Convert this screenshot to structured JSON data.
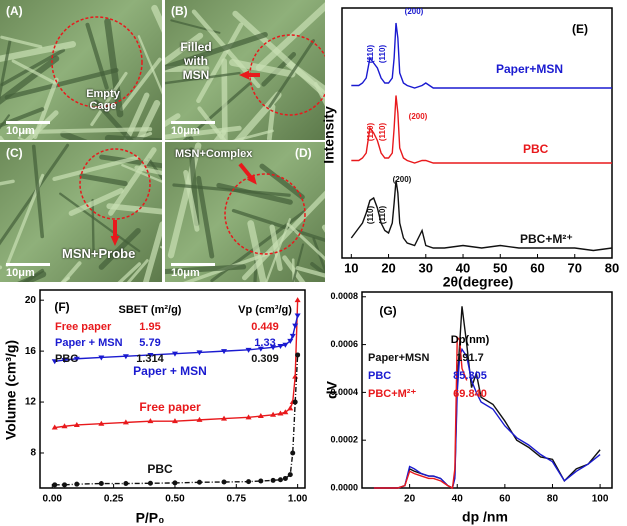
{
  "sem_panels": [
    {
      "label": "(A)",
      "caption": "Empty Cage",
      "scale": "10μm"
    },
    {
      "label": "(B)",
      "caption": "Filled with MSN",
      "scale": "10μm"
    },
    {
      "label": "(C)",
      "caption": "MSN+Probe",
      "scale": "10μm"
    },
    {
      "label": "(D)",
      "caption": "MSN+Complex",
      "scale": "10μm"
    }
  ],
  "chart_data": [
    {
      "type": "line",
      "panel": "(E)",
      "xlabel": "2θ(degree)",
      "ylabel": "Intensity",
      "x": [
        10,
        12,
        13,
        14,
        15,
        16,
        17,
        18,
        19,
        20,
        21,
        21.5,
        22,
        22.5,
        23,
        24,
        25,
        27,
        29,
        30,
        32,
        35,
        40,
        45,
        50,
        55,
        60,
        65,
        70,
        75,
        80
      ],
      "xlim": [
        7.5,
        80
      ],
      "xticks": [
        10,
        20,
        30,
        40,
        50,
        60,
        70,
        80
      ],
      "ylim": [
        0,
        100
      ],
      "series": [
        {
          "name": "Paper+MSN",
          "color": "#1a1ad0",
          "values": [
            69,
            69,
            70,
            72,
            80,
            78,
            76,
            72,
            70,
            70,
            72,
            80,
            94,
            88,
            74,
            70,
            69,
            68,
            69,
            70,
            68,
            68,
            68,
            68,
            68,
            68,
            68,
            68,
            68,
            68,
            68
          ]
        },
        {
          "name": "PBC",
          "color": "#e8191c",
          "values": [
            39,
            39,
            40,
            42,
            52,
            50,
            47,
            42,
            40,
            40,
            42,
            52,
            65,
            58,
            44,
            40,
            39,
            38,
            39,
            39,
            38,
            38,
            38,
            38,
            38,
            38,
            38,
            38,
            38,
            38,
            38
          ]
        },
        {
          "name": "PBC+M²⁺",
          "color": "#111111",
          "values": [
            8,
            12,
            14,
            18,
            23,
            24,
            20,
            14,
            11,
            10,
            14,
            22,
            31,
            26,
            14,
            8,
            6,
            5,
            11,
            5,
            4,
            4,
            5,
            4,
            5,
            4,
            4,
            4,
            4,
            3,
            4
          ]
        }
      ],
      "annotations": [
        {
          "text": "(110)",
          "color": "#1a1ad0"
        },
        {
          "text": "(110)",
          "color": "#1a1ad0"
        },
        {
          "text": "(200)",
          "color": "#1a1ad0"
        },
        {
          "text": "(110)",
          "color": "#e8191c"
        },
        {
          "text": "(110)",
          "color": "#e8191c"
        },
        {
          "text": "(200)",
          "color": "#e8191c"
        },
        {
          "text": "(110)",
          "color": "#111111"
        },
        {
          "text": "(110)",
          "color": "#111111"
        },
        {
          "text": "(200)",
          "color": "#111111"
        }
      ]
    },
    {
      "type": "line",
      "panel": "(F)",
      "xlabel": "P/P₀",
      "ylabel": "Volume (cm³/g)",
      "x": [
        0.01,
        0.05,
        0.1,
        0.2,
        0.3,
        0.4,
        0.5,
        0.6,
        0.7,
        0.8,
        0.85,
        0.9,
        0.93,
        0.95,
        0.97,
        0.98,
        0.99,
        1.0
      ],
      "xlim": [
        -0.05,
        1.03
      ],
      "ylim": [
        5.25,
        20.8
      ],
      "xticks": [
        {
          "value": 0,
          "label": "0.00"
        },
        {
          "value": 0.25,
          "label": "0.25"
        },
        {
          "value": 0.5,
          "label": "0.50"
        },
        {
          "value": 0.75,
          "label": "0.75"
        },
        {
          "value": 1,
          "label": "1.00"
        }
      ],
      "yticks": [
        8,
        12,
        16,
        20
      ],
      "series": [
        {
          "name": "Free paper",
          "color": "#e8191c",
          "marker": "triangle",
          "values": [
            10.0,
            10.1,
            10.2,
            10.3,
            10.4,
            10.5,
            10.5,
            10.6,
            10.7,
            10.8,
            10.9,
            11.0,
            11.1,
            11.2,
            11.5,
            12,
            14,
            20
          ]
        },
        {
          "name": "Paper + MSN",
          "color": "#1a1ad0",
          "marker": "triangle-down",
          "values": [
            15.2,
            15.3,
            15.4,
            15.5,
            15.6,
            15.7,
            15.8,
            15.9,
            16.0,
            16.1,
            16.2,
            16.3,
            16.4,
            16.5,
            16.8,
            17.2,
            18,
            18.8
          ]
        },
        {
          "name": "PBC",
          "color": "#111111",
          "marker": "circle",
          "dash": true,
          "values": [
            5.5,
            5.5,
            5.55,
            5.6,
            5.6,
            5.62,
            5.65,
            5.7,
            5.72,
            5.75,
            5.8,
            5.85,
            5.9,
            6.0,
            6.3,
            8,
            12,
            15.7
          ]
        }
      ],
      "table": {
        "columns": [
          "SBET (m²/g)",
          "Vp (cm³/g)"
        ],
        "rows": [
          {
            "name": "Free paper",
            "color": "#e8191c",
            "values": [
              1.95,
              0.449
            ]
          },
          {
            "name": "Paper + MSN",
            "color": "#1a1ad0",
            "values": [
              5.79,
              1.33
            ]
          },
          {
            "name": "PBC",
            "color": "#111111",
            "values": [
              1.314,
              0.309
            ]
          }
        ]
      }
    },
    {
      "type": "line",
      "panel": "(G)",
      "xlabel": "dp /nm",
      "ylabel": "dV",
      "x": [
        5,
        10,
        15,
        18,
        20,
        22,
        25,
        28,
        30,
        33,
        36,
        38,
        39,
        40,
        41,
        42,
        44,
        46,
        48,
        50,
        55,
        60,
        65,
        70,
        75,
        80,
        85,
        90,
        95,
        100
      ],
      "xlim": [
        0,
        105
      ],
      "ylim": [
        0,
        0.00082
      ],
      "xticks": [
        20,
        40,
        60,
        80,
        100
      ],
      "yticks": [
        {
          "value": 0,
          "label": "0.0000"
        },
        {
          "value": 0.0002,
          "label": "0.0002"
        },
        {
          "value": 0.0004,
          "label": "0.0004"
        },
        {
          "value": 0.0006,
          "label": "0.0006"
        },
        {
          "value": 0.0008,
          "label": "0.0008"
        }
      ],
      "series": [
        {
          "name": "Paper+MSN",
          "color": "#111111",
          "values": [
            0,
            0,
            0,
            1e-05,
            8e-05,
            7e-05,
            6e-05,
            5e-05,
            5e-05,
            4e-05,
            1e-05,
            0,
            5e-05,
            0.00045,
            0.0006,
            0.00076,
            0.0006,
            0.00042,
            0.00048,
            0.00038,
            0.00035,
            0.00028,
            0.0002,
            0.00017,
            0.00013,
            0.00012,
            3e-05,
            8e-05,
            0.0001,
            0.00016
          ]
        },
        {
          "name": "PBC",
          "color": "#1a1ad0",
          "values": [
            0,
            0,
            0,
            1e-05,
            9e-05,
            8e-05,
            6e-05,
            5e-05,
            5e-05,
            4e-05,
            1e-05,
            0,
            4e-05,
            0.0004,
            0.00055,
            0.00058,
            0.00055,
            0.00045,
            0.0004,
            0.00036,
            0.00033,
            0.00026,
            0.00021,
            0.00018,
            0.00014,
            0.00011,
            3e-05,
            7e-05,
            0.0001,
            0.00014
          ]
        },
        {
          "name": "PBC+M²⁺",
          "color": "#e8191c",
          "values": [
            0,
            0,
            0,
            1e-05,
            7e-05,
            6e-05,
            5e-05,
            4e-05,
            4e-05,
            3e-05,
            1e-05,
            0,
            8e-05,
            0.00063,
            0.00062,
            0.0005,
            0.00045,
            null,
            null,
            null,
            null,
            null,
            null,
            null,
            null,
            null,
            null,
            null,
            null,
            null
          ]
        }
      ],
      "table": {
        "header": "Dp(nm)",
        "values": [
          191.7,
          85.305,
          69.84
        ],
        "value_labels": [
          "191.7",
          "85.305",
          "69.840"
        ]
      }
    }
  ]
}
